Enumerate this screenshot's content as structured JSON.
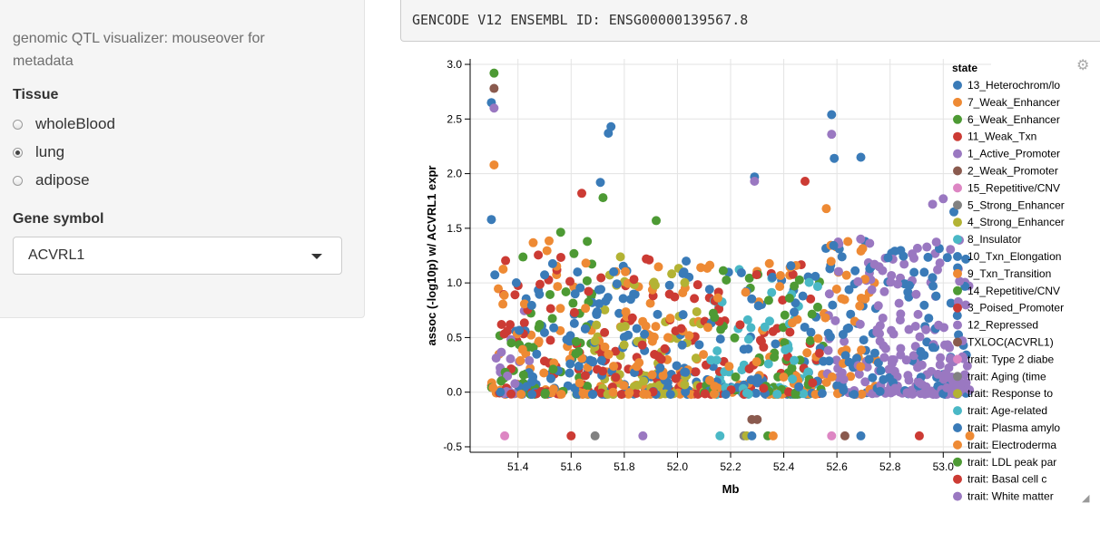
{
  "sidebar": {
    "title": "genomic QTL visualizer: mouseover for metadata",
    "tissue_label": "Tissue",
    "tissue_options": [
      {
        "label": "wholeBlood",
        "selected": false
      },
      {
        "label": "lung",
        "selected": true
      },
      {
        "label": "adipose",
        "selected": false
      }
    ],
    "gene_label": "Gene symbol",
    "gene_value": "ACVRL1"
  },
  "header": {
    "gene_id_text": "GENCODE V12 ENSEMBL ID: ENSG00000139567.8"
  },
  "icons": {
    "settings": "gear-icon",
    "resize": "resize-handle-icon",
    "dropdown": "chevron-down-icon"
  },
  "chart_data": {
    "type": "scatter",
    "xlabel": "Mb",
    "ylabel": "assoc (-log10p) w/ ACVRL1 expr",
    "xlim": [
      51.22,
      53.18
    ],
    "ylim": [
      -0.55,
      3.05
    ],
    "xticks": [
      "51.4",
      "51.6",
      "51.8",
      "52.0",
      "52.2",
      "52.4",
      "52.6",
      "52.8",
      "53.0"
    ],
    "xtick_values": [
      51.4,
      51.6,
      51.8,
      52.0,
      52.2,
      52.4,
      52.6,
      52.8,
      53.0
    ],
    "yticks": [
      "-0.5",
      "0.0",
      "0.5",
      "1.0",
      "1.5",
      "2.0",
      "2.5",
      "3.0"
    ],
    "ytick_values": [
      -0.5,
      0.0,
      0.5,
      1.0,
      1.5,
      2.0,
      2.5,
      3.0
    ],
    "grid": true,
    "legend_title": "state",
    "legend_position": "right",
    "series": [
      {
        "name": "13_Heterochrom/lo",
        "color": "#3a7bb8"
      },
      {
        "name": "7_Weak_Enhancer",
        "color": "#ee8a34"
      },
      {
        "name": "6_Weak_Enhancer",
        "color": "#4d9a34"
      },
      {
        "name": "11_Weak_Txn",
        "color": "#cc3b34"
      },
      {
        "name": "1_Active_Promoter",
        "color": "#9a78c1"
      },
      {
        "name": "2_Weak_Promoter",
        "color": "#8a5a4e"
      },
      {
        "name": "15_Repetitive/CNV",
        "color": "#dd86c3"
      },
      {
        "name": "5_Strong_Enhancer",
        "color": "#818181"
      },
      {
        "name": "4_Strong_Enhancer",
        "color": "#b3b334"
      },
      {
        "name": "8_Insulator",
        "color": "#4ab8c6"
      },
      {
        "name": "10_Txn_Elongation",
        "color": "#3a7bb8"
      },
      {
        "name": "9_Txn_Transition",
        "color": "#ee8a34"
      },
      {
        "name": "14_Repetitive/CNV",
        "color": "#4d9a34"
      },
      {
        "name": "3_Poised_Promoter",
        "color": "#cc3b34"
      },
      {
        "name": "12_Repressed",
        "color": "#9a78c1"
      },
      {
        "name": "TXLOC(ACVRL1)",
        "color": "#8a5a4e"
      },
      {
        "name": "trait: Type 2 diabe",
        "color": "#dd86c3"
      },
      {
        "name": "trait: Aging (time",
        "color": "#818181"
      },
      {
        "name": "trait: Response to",
        "color": "#b3b334"
      },
      {
        "name": "trait: Age-related",
        "color": "#4ab8c6"
      },
      {
        "name": "trait: Plasma amylo",
        "color": "#3a7bb8"
      },
      {
        "name": "trait: Electroderma",
        "color": "#ee8a34"
      },
      {
        "name": "trait: LDL peak par",
        "color": "#4d9a34"
      },
      {
        "name": "trait: Basal cell c",
        "color": "#cc3b34"
      },
      {
        "name": "trait: White matter",
        "color": "#9a78c1"
      }
    ],
    "highlighted_points": [
      {
        "x": 51.31,
        "y": 2.92,
        "series": "6_Weak_Enhancer"
      },
      {
        "x": 51.31,
        "y": 2.78,
        "series": "2_Weak_Promoter"
      },
      {
        "x": 51.3,
        "y": 2.65,
        "series": "13_Heterochrom/lo"
      },
      {
        "x": 51.31,
        "y": 2.6,
        "series": "1_Active_Promoter"
      },
      {
        "x": 51.31,
        "y": 2.08,
        "series": "7_Weak_Enhancer"
      },
      {
        "x": 51.3,
        "y": 1.58,
        "series": "13_Heterochrom/lo"
      },
      {
        "x": 51.75,
        "y": 2.43,
        "series": "13_Heterochrom/lo"
      },
      {
        "x": 51.74,
        "y": 2.37,
        "series": "13_Heterochrom/lo"
      },
      {
        "x": 51.71,
        "y": 1.92,
        "series": "13_Heterochrom/lo"
      },
      {
        "x": 51.72,
        "y": 1.78,
        "series": "6_Weak_Enhancer"
      },
      {
        "x": 51.64,
        "y": 1.82,
        "series": "11_Weak_Txn"
      },
      {
        "x": 51.92,
        "y": 1.57,
        "series": "6_Weak_Enhancer"
      },
      {
        "x": 52.29,
        "y": 1.97,
        "series": "13_Heterochrom/lo"
      },
      {
        "x": 52.29,
        "y": 1.93,
        "series": "1_Active_Promoter"
      },
      {
        "x": 52.48,
        "y": 1.93,
        "series": "11_Weak_Txn"
      },
      {
        "x": 52.58,
        "y": 2.54,
        "series": "13_Heterochrom/lo"
      },
      {
        "x": 52.58,
        "y": 2.36,
        "series": "1_Active_Promoter"
      },
      {
        "x": 52.59,
        "y": 2.14,
        "series": "13_Heterochrom/lo"
      },
      {
        "x": 52.69,
        "y": 2.15,
        "series": "13_Heterochrom/lo"
      },
      {
        "x": 52.56,
        "y": 1.68,
        "series": "7_Weak_Enhancer"
      },
      {
        "x": 53.0,
        "y": 1.77,
        "series": "1_Active_Promoter"
      },
      {
        "x": 52.96,
        "y": 1.72,
        "series": "1_Active_Promoter"
      },
      {
        "x": 53.04,
        "y": 1.65,
        "series": "13_Heterochrom/lo"
      },
      {
        "x": 52.28,
        "y": -0.25,
        "series": "2_Weak_Promoter"
      },
      {
        "x": 52.3,
        "y": -0.25,
        "series": "2_Weak_Promoter"
      }
    ],
    "trait_points_y": -0.4,
    "trait_points": [
      {
        "x": 51.35,
        "series": "trait: Type 2 diabe"
      },
      {
        "x": 51.6,
        "series": "trait: Basal cell c"
      },
      {
        "x": 51.69,
        "series": "trait: Aging (time"
      },
      {
        "x": 51.87,
        "series": "trait: White matter"
      },
      {
        "x": 52.16,
        "series": "trait: Age-related"
      },
      {
        "x": 52.25,
        "series": "trait: Aging (time"
      },
      {
        "x": 52.26,
        "series": "trait: Response to"
      },
      {
        "x": 52.28,
        "series": "trait: Plasma amylo"
      },
      {
        "x": 52.34,
        "series": "trait: LDL peak par"
      },
      {
        "x": 52.36,
        "series": "trait: Electroderma"
      },
      {
        "x": 52.58,
        "series": "trait: Type 2 diabe"
      },
      {
        "x": 52.63,
        "series": "2_Weak_Promoter"
      },
      {
        "x": 52.69,
        "series": "trait: Plasma amylo"
      },
      {
        "x": 52.91,
        "series": "trait: Basal cell c"
      },
      {
        "x": 53.1,
        "series": "trait: Electroderma"
      }
    ],
    "dense_regions": [
      {
        "x": [
          51.3,
          51.45
        ],
        "ymax": 1.25,
        "series": [
          "13_Heterochrom/lo",
          "11_Weak_Txn",
          "6_Weak_Enhancer",
          "7_Weak_Enhancer",
          "1_Active_Promoter"
        ]
      },
      {
        "x": [
          51.45,
          51.68
        ],
        "ymax": 1.5,
        "series": [
          "11_Weak_Txn",
          "13_Heterochrom/lo",
          "7_Weak_Enhancer",
          "6_Weak_Enhancer"
        ]
      },
      {
        "x": [
          51.68,
          52.1
        ],
        "ymax": 1.25,
        "series": [
          "13_Heterochrom/lo",
          "11_Weak_Txn",
          "7_Weak_Enhancer",
          "4_Strong_Enhancer"
        ]
      },
      {
        "x": [
          52.1,
          52.55
        ],
        "ymax": 1.2,
        "series": [
          "13_Heterochrom/lo",
          "11_Weak_Txn",
          "6_Weak_Enhancer",
          "7_Weak_Enhancer",
          "8_Insulator"
        ]
      },
      {
        "x": [
          52.55,
          52.75
        ],
        "ymax": 1.45,
        "series": [
          "13_Heterochrom/lo",
          "1_Active_Promoter",
          "7_Weak_Enhancer"
        ]
      },
      {
        "x": [
          52.75,
          53.1
        ],
        "ymax": 1.4,
        "series": [
          "1_Active_Promoter",
          "13_Heterochrom/lo",
          "12_Repressed"
        ]
      }
    ]
  }
}
